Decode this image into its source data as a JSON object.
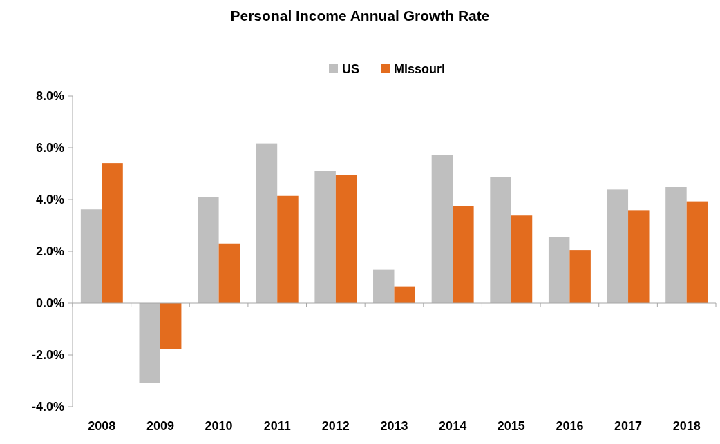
{
  "chart_data": {
    "type": "bar",
    "title": "Personal Income Annual Growth Rate",
    "categories": [
      "2008",
      "2009",
      "2010",
      "2011",
      "2012",
      "2013",
      "2014",
      "2015",
      "2016",
      "2017",
      "2018"
    ],
    "series": [
      {
        "name": "US",
        "color": "#bfbfbf",
        "values": [
          3.62,
          -3.08,
          4.09,
          6.17,
          5.11,
          1.29,
          5.71,
          4.87,
          2.56,
          4.39,
          4.48
        ]
      },
      {
        "name": "Missouri",
        "color": "#e36c1e",
        "values": [
          5.41,
          -1.77,
          2.3,
          4.14,
          4.94,
          0.65,
          3.75,
          3.38,
          2.05,
          3.59,
          3.93
        ]
      }
    ],
    "ylim": [
      -4,
      8
    ],
    "yticks": [
      {
        "value": -4,
        "label": "-4.0%"
      },
      {
        "value": -2,
        "label": "-2.0%"
      },
      {
        "value": 0,
        "label": "0.0%"
      },
      {
        "value": 2,
        "label": "2.0%"
      },
      {
        "value": 4,
        "label": "4.0%"
      },
      {
        "value": 6,
        "label": "6.0%"
      },
      {
        "value": 8,
        "label": "8.0%"
      }
    ],
    "legend": "top"
  }
}
